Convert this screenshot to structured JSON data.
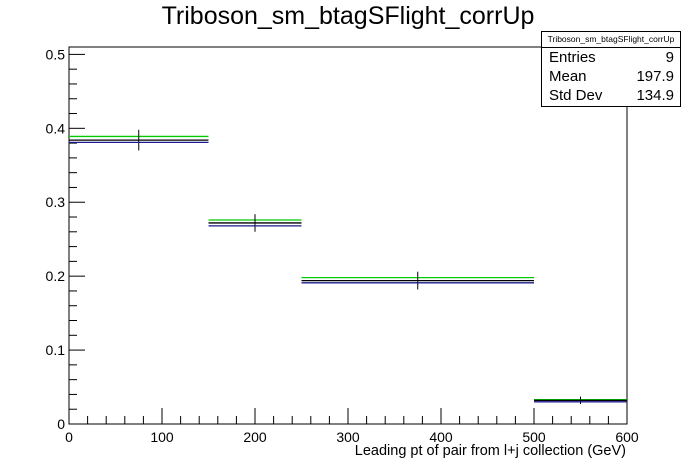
{
  "chart_data": {
    "type": "histogram",
    "title": "Triboson_sm_btagSFlight_corrUp",
    "xlabel": "Leading pt of pair from l+j collection (GeV)",
    "ylabel": "",
    "xlim": [
      0,
      600
    ],
    "ylim": [
      0,
      0.51
    ],
    "x_ticks": [
      "0",
      "100",
      "200",
      "300",
      "400",
      "500",
      "600"
    ],
    "y_ticks": [
      "0",
      "0.1",
      "0.2",
      "0.3",
      "0.4",
      "0.5"
    ],
    "bins": [
      [
        0,
        150
      ],
      [
        150,
        250
      ],
      [
        250,
        500
      ],
      [
        500,
        600
      ]
    ],
    "series": [
      {
        "color": "#00cc00",
        "values": [
          0.389,
          0.276,
          0.198,
          0.033
        ]
      },
      {
        "color": "#000000",
        "values": [
          0.384,
          0.272,
          0.194,
          0.032
        ],
        "errors": [
          0.014,
          0.012,
          0.012,
          0.005
        ]
      },
      {
        "color": "#1a1a8c",
        "values": [
          0.381,
          0.268,
          0.191,
          0.03
        ]
      }
    ],
    "stats": {
      "name": "Triboson_sm_btagSFlight_corrUp",
      "entries_label": "Entries",
      "entries": "9",
      "mean_label": "Mean",
      "mean": "197.9",
      "std_label": "Std Dev",
      "std": "134.9"
    }
  }
}
